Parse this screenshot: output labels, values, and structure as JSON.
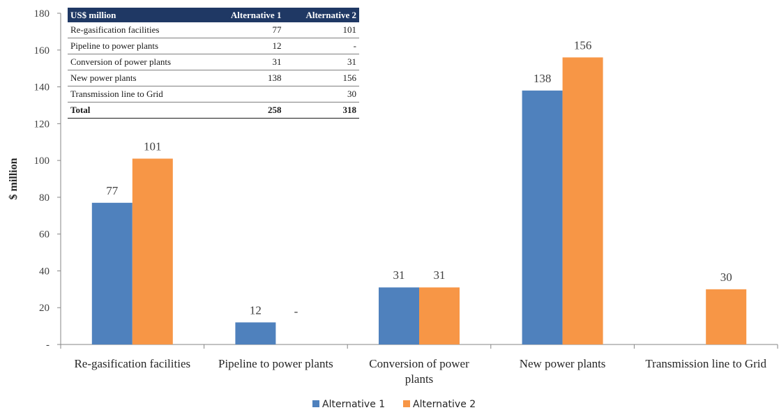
{
  "chart_data": {
    "type": "bar",
    "ylabel": "$ million",
    "xlabel": "",
    "ylim": [
      0,
      180
    ],
    "ytick_step": 20,
    "ytick_labels": [
      "-",
      "20",
      "40",
      "60",
      "80",
      "100",
      "120",
      "140",
      "160",
      "180"
    ],
    "categories": [
      [
        "Re-gasification facilities"
      ],
      [
        "Pipeline to power plants"
      ],
      [
        "Conversion of power",
        "plants"
      ],
      [
        "New power plants"
      ],
      [
        "Transmission line to Grid"
      ]
    ],
    "series": [
      {
        "name": "Alternative 1",
        "color": "#4f81bd",
        "values": [
          77,
          12,
          31,
          138,
          null
        ],
        "labels": [
          "77",
          "12",
          "31",
          "138",
          ""
        ]
      },
      {
        "name": "Alternative 2",
        "color": "#f79646",
        "values": [
          101,
          0,
          31,
          156,
          30
        ],
        "labels": [
          "101",
          "-",
          "31",
          "156",
          "30"
        ]
      }
    ],
    "legend_position": "bottom",
    "grid": false
  },
  "table": {
    "headers": [
      "US$ million",
      "Alternative 1",
      "Alternative 2"
    ],
    "rows": [
      [
        "Re-gasification facilities",
        "77",
        "101"
      ],
      [
        "Pipeline to power plants",
        "12",
        "-"
      ],
      [
        "Conversion of power plants",
        "31",
        "31"
      ],
      [
        "New power plants",
        "138",
        "156"
      ],
      [
        "Transmission line to Grid",
        "",
        "30"
      ]
    ],
    "total": [
      "Total",
      "258",
      "318"
    ]
  }
}
